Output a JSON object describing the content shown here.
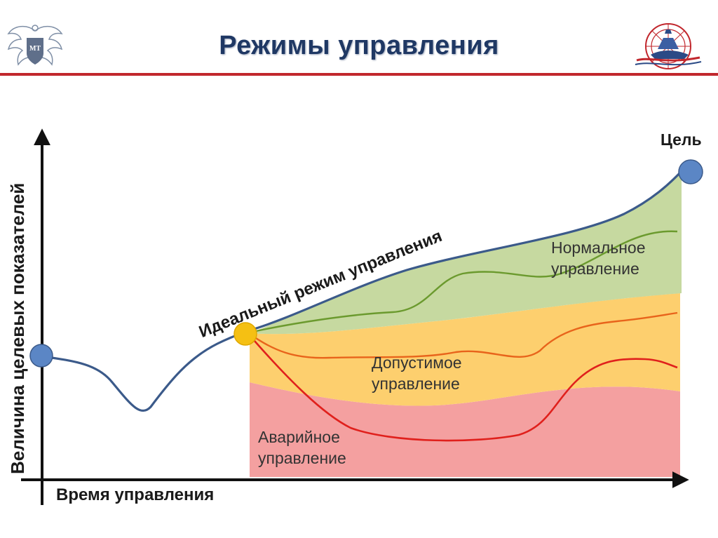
{
  "title": "Режимы управления",
  "labels": {
    "goal": "Цель",
    "ideal_mode": "Идеальный режим управления",
    "normal_line1": "Нормальное",
    "normal_line2": "управление",
    "allowed_line1": "Допустимое",
    "allowed_line2": "управление",
    "emergency_line1": "Аварийное",
    "emergency_line2": "управление",
    "x_axis": "Время управления",
    "y_axis": "Величина целевых показателей"
  },
  "logos": {
    "left_badge_text": "МТ"
  },
  "colors": {
    "title": "#1f3864",
    "rule": "#c1272d",
    "normal_zone": "#c6d9a0",
    "allowed_zone": "#fdcf6e",
    "emergency_zone": "#f4a0a0",
    "ideal_curve": "#3b5a8a",
    "normal_curve": "#6b9a2e",
    "allowed_curve": "#e8641b",
    "emergency_curve": "#e0201c",
    "point_blue": "#5b86c5",
    "point_yellow": "#f5c013"
  },
  "icons": {
    "left_logo": "eagle-emblem-icon",
    "right_logo": "transport-emblem-icon"
  }
}
